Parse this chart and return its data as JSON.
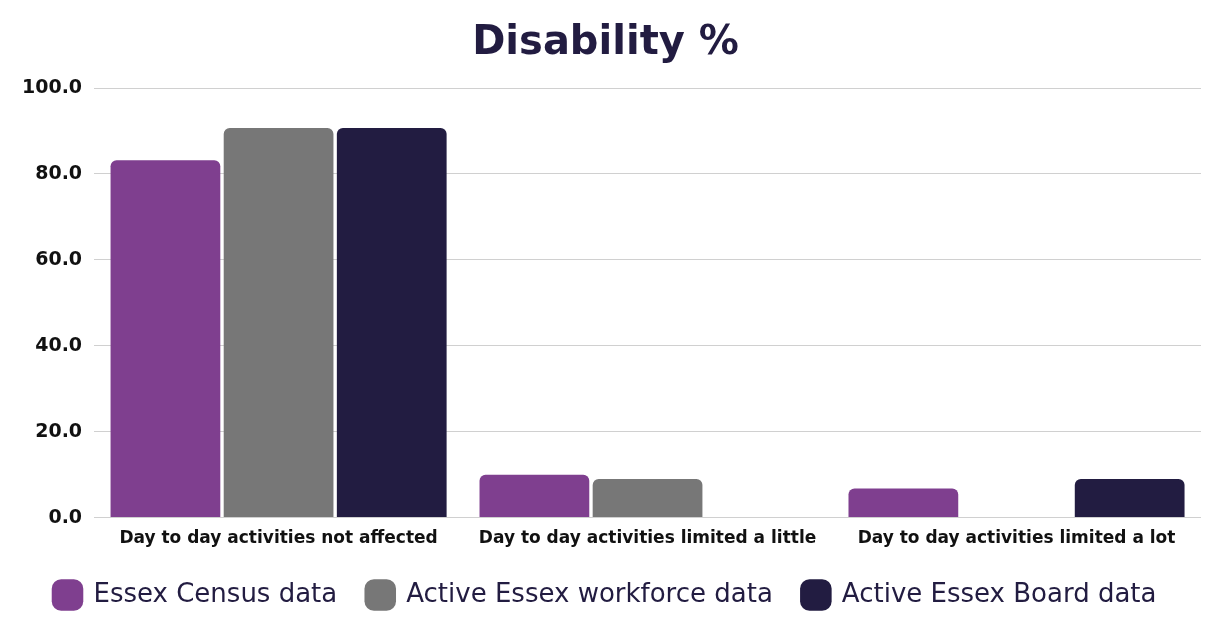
{
  "chart_data": {
    "type": "bar",
    "title": "Disability %",
    "categories": [
      "Day to day activities not affected",
      "Day to day activities limited a little",
      "Day to day activities limited a lot"
    ],
    "series": [
      {
        "name": "Essex Census data",
        "color": "#7f3f8f",
        "values": [
          83.2,
          10.0,
          6.8
        ]
      },
      {
        "name": "Active Essex workforce data",
        "color": "#777777",
        "values": [
          90.7,
          9.0,
          null
        ]
      },
      {
        "name": "Active Essex Board data",
        "color": "#221c41",
        "values": [
          90.7,
          null,
          9.0
        ]
      }
    ],
    "ylim": [
      0,
      100
    ],
    "yticks": [
      {
        "value": 0,
        "label": "0.0"
      },
      {
        "value": 20,
        "label": "20.0"
      },
      {
        "value": 40,
        "label": "40.0"
      },
      {
        "value": 60,
        "label": "60.0"
      },
      {
        "value": 80,
        "label": "80.0"
      },
      {
        "value": 100,
        "label": "100.0"
      }
    ],
    "grid": "y",
    "legend": "bottom"
  }
}
